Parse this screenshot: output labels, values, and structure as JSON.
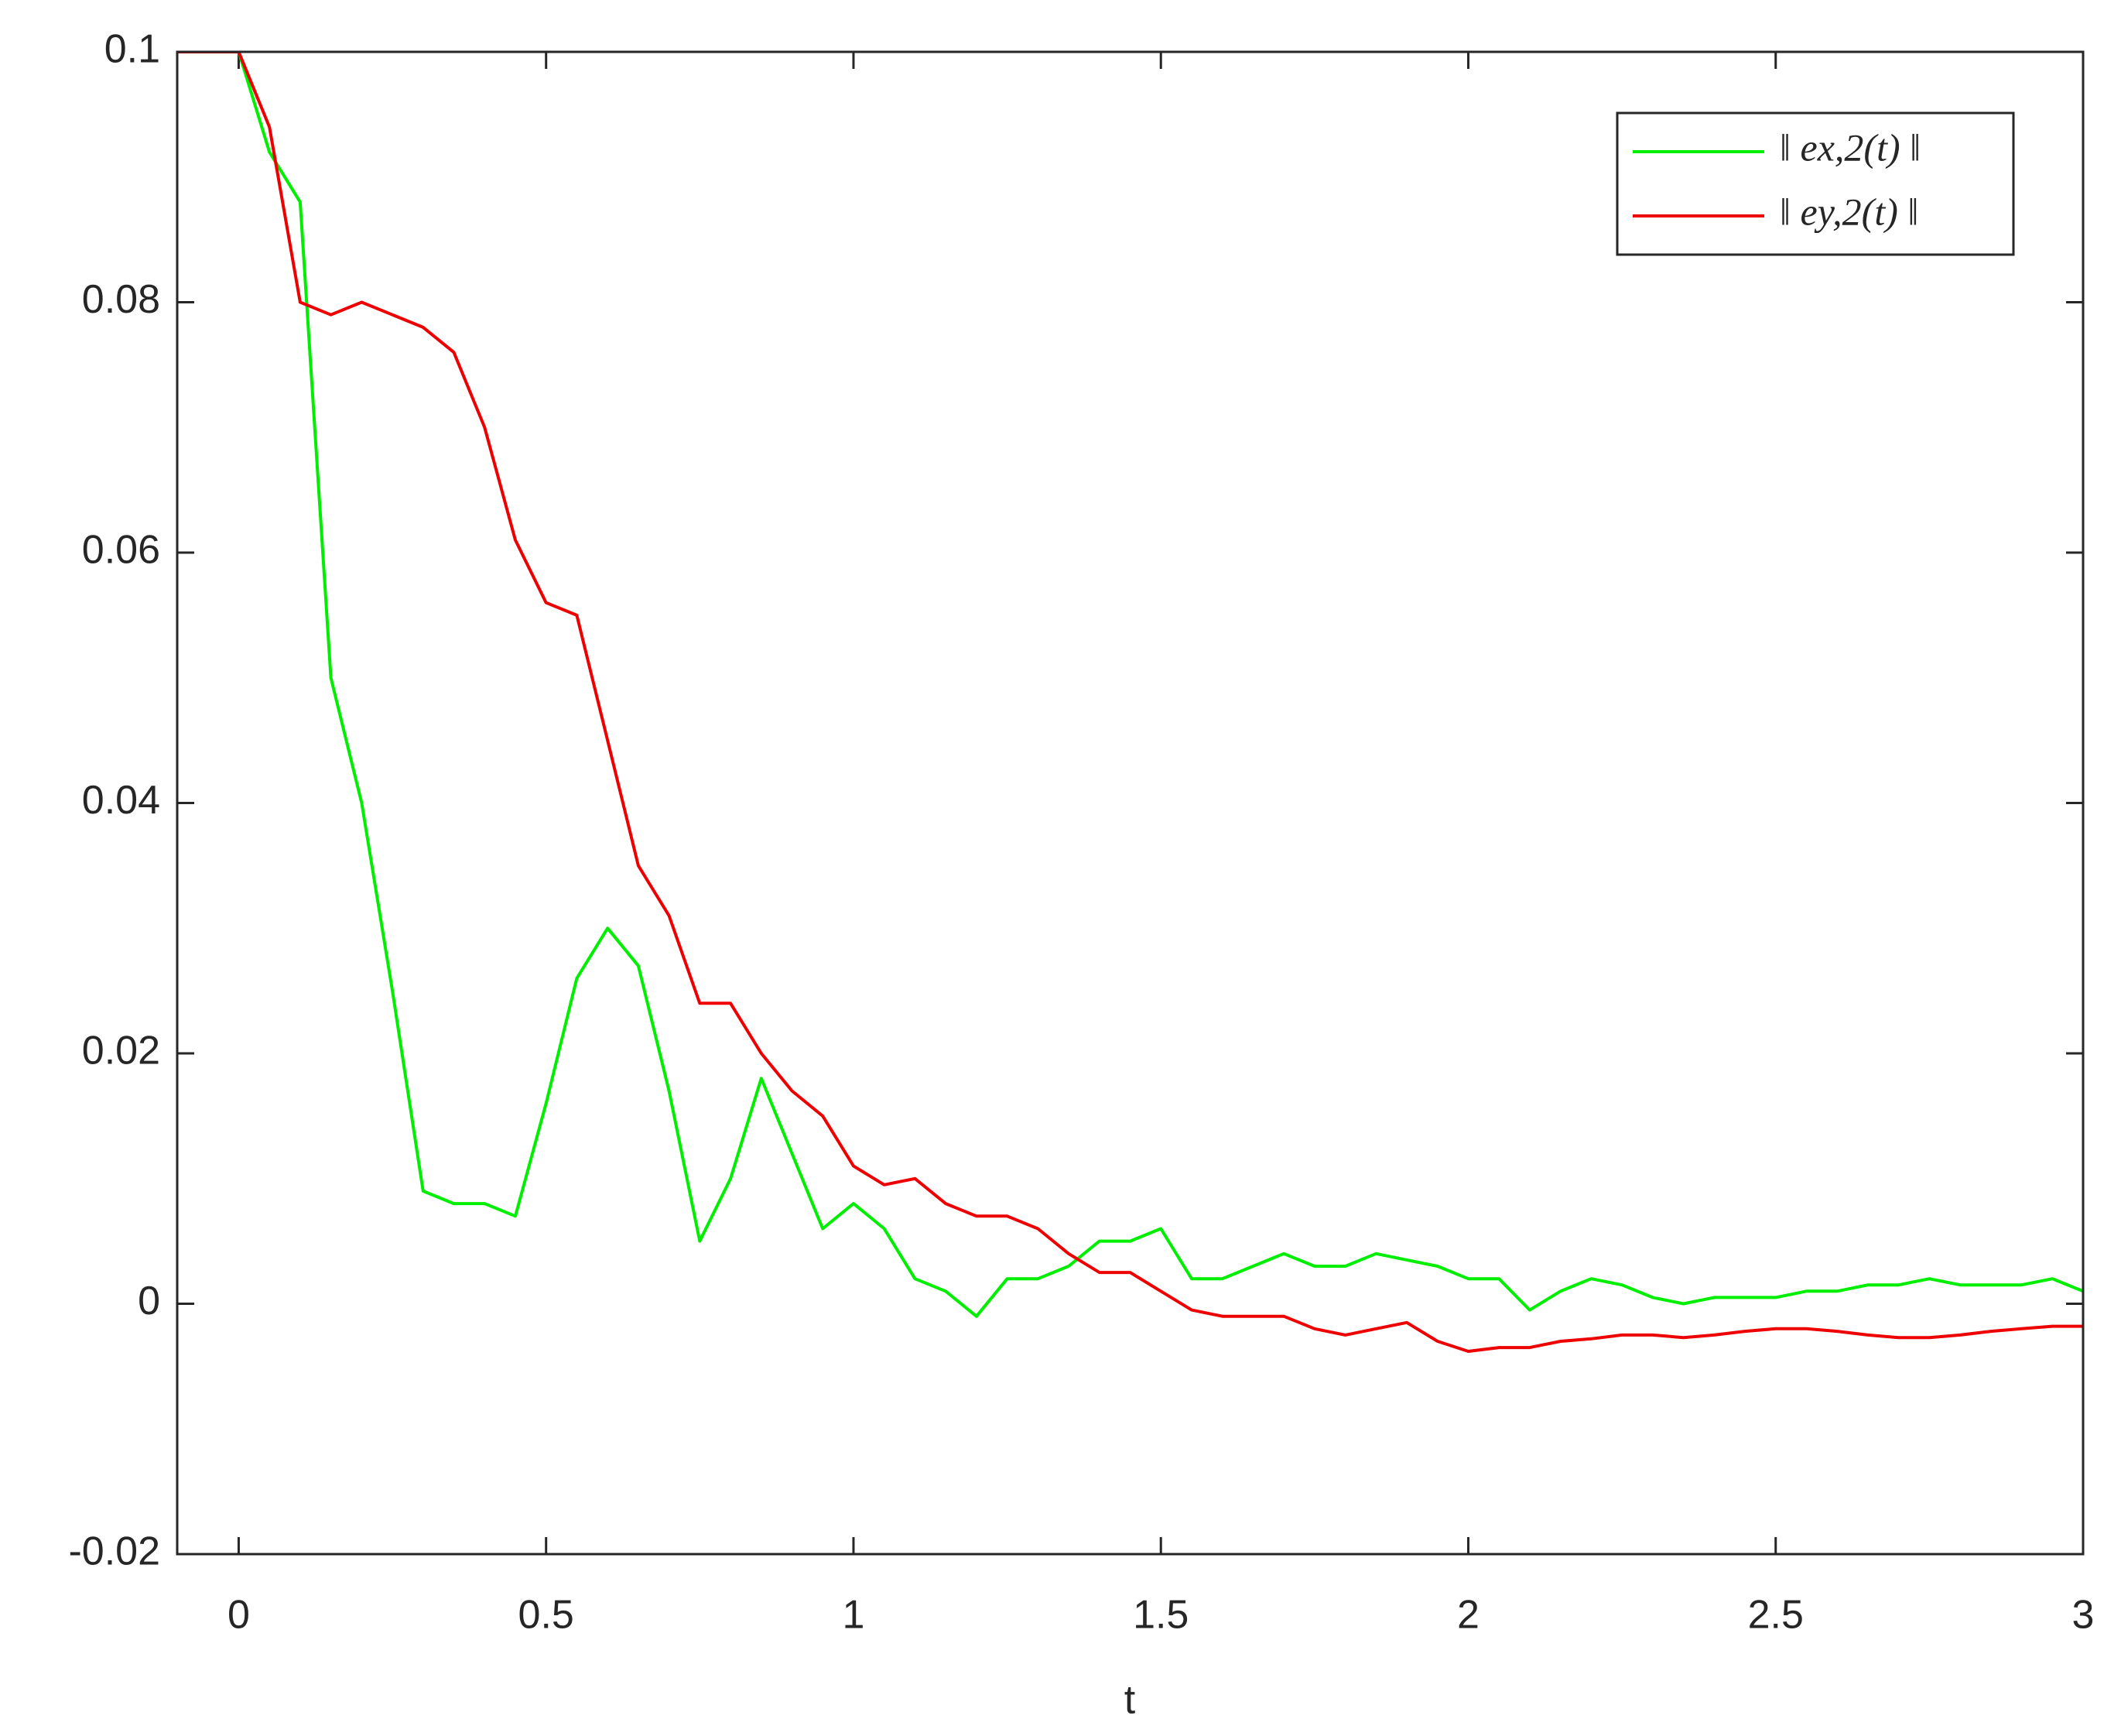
{
  "chart_data": {
    "type": "line",
    "xlabel": "t",
    "x": [
      -0.1,
      -0.05,
      0,
      0.05,
      0.1,
      0.15,
      0.2,
      0.25,
      0.3,
      0.35,
      0.4,
      0.45,
      0.5,
      0.55,
      0.6,
      0.65,
      0.7,
      0.75,
      0.8,
      0.85,
      0.9,
      0.95,
      1,
      1.05,
      1.1,
      1.15,
      1.2,
      1.25,
      1.3,
      1.35,
      1.4,
      1.45,
      1.5,
      1.55,
      1.6,
      1.65,
      1.7,
      1.75,
      1.8,
      1.85,
      1.9,
      1.95,
      2,
      2.05,
      2.1,
      2.15,
      2.2,
      2.25,
      2.3,
      2.35,
      2.4,
      2.45,
      2.5,
      2.55,
      2.6,
      2.65,
      2.7,
      2.75,
      2.8,
      2.85,
      2.9,
      2.95,
      3
    ],
    "series": [
      {
        "name": "‖ ex,2(t) ‖",
        "color": "#00ee00",
        "values": [
          0.1,
          0.1,
          0.1,
          0.092,
          0.088,
          0.05,
          0.04,
          0.025,
          0.009,
          0.008,
          0.008,
          0.007,
          0.016,
          0.026,
          0.03,
          0.027,
          0.017,
          0.005,
          0.01,
          0.018,
          0.012,
          0.006,
          0.008,
          0.006,
          0.002,
          0.001,
          -0.001,
          0.002,
          0.002,
          0.003,
          0.005,
          0.005,
          0.006,
          0.002,
          0.002,
          0.003,
          0.004,
          0.003,
          0.003,
          0.004,
          0.0035,
          0.003,
          0.002,
          0.002,
          -0.0005,
          0.001,
          0.002,
          0.0015,
          0.0005,
          0,
          0.0005,
          0.0005,
          0.0005,
          0.001,
          0.001,
          0.0015,
          0.0015,
          0.002,
          0.0015,
          0.0015,
          0.0015,
          0.002,
          0.001
        ]
      },
      {
        "name": "‖ ey,2(t) ‖",
        "color": "#ee0000",
        "values": [
          0.1,
          0.1,
          0.1,
          0.094,
          0.08,
          0.079,
          0.08,
          0.079,
          0.078,
          0.076,
          0.07,
          0.061,
          0.056,
          0.055,
          0.045,
          0.035,
          0.031,
          0.024,
          0.024,
          0.02,
          0.017,
          0.015,
          0.011,
          0.0095,
          0.01,
          0.008,
          0.007,
          0.007,
          0.006,
          0.004,
          0.0025,
          0.0025,
          0.001,
          -0.0005,
          -0.001,
          -0.001,
          -0.001,
          -0.002,
          -0.0025,
          -0.002,
          -0.0015,
          -0.003,
          -0.0038,
          -0.0035,
          -0.0035,
          -0.003,
          -0.0028,
          -0.0025,
          -0.0025,
          -0.0027,
          -0.0025,
          -0.0022,
          -0.002,
          -0.002,
          -0.0022,
          -0.0025,
          -0.0027,
          -0.0027,
          -0.0025,
          -0.0022,
          -0.002,
          -0.0018,
          -0.0018
        ]
      }
    ],
    "xlim": [
      -0.1,
      3
    ],
    "ylim": [
      -0.02,
      0.1
    ],
    "xticks": [
      0,
      0.5,
      1,
      1.5,
      2,
      2.5,
      3
    ],
    "yticks": [
      -0.02,
      0,
      0.02,
      0.04,
      0.06,
      0.08,
      0.1
    ],
    "grid": false,
    "legend": "upper right"
  }
}
